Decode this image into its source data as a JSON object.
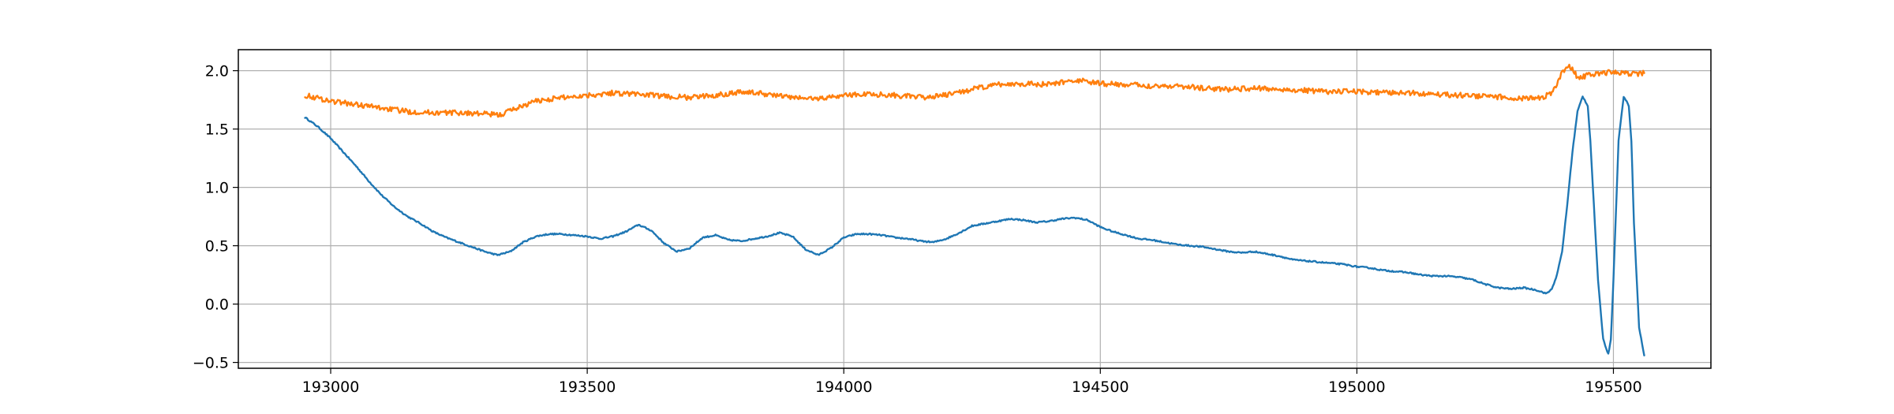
{
  "chart_data": {
    "type": "line",
    "title": "",
    "xlabel": "",
    "ylabel": "",
    "xlim": [
      192820,
      195690
    ],
    "ylim": [
      -0.55,
      2.18
    ],
    "grid": true,
    "xticks": [
      193000,
      193500,
      194000,
      194500,
      195000,
      195500
    ],
    "xtick_labels": [
      "193000",
      "193500",
      "194000",
      "194500",
      "195000",
      "195500"
    ],
    "yticks": [
      -0.5,
      0.0,
      0.5,
      1.0,
      1.5,
      2.0
    ],
    "ytick_labels": [
      "−0.5",
      "0.0",
      "0.5",
      "1.0",
      "1.5",
      "2.0"
    ],
    "series": [
      {
        "color": "#1f77b4",
        "x": [
          192950,
          192975,
          193000,
          193025,
          193050,
          193075,
          193100,
          193125,
          193150,
          193175,
          193200,
          193225,
          193250,
          193275,
          193300,
          193325,
          193350,
          193375,
          193400,
          193425,
          193450,
          193475,
          193500,
          193525,
          193550,
          193575,
          193600,
          193625,
          193650,
          193675,
          193700,
          193725,
          193750,
          193775,
          193800,
          193825,
          193850,
          193875,
          193900,
          193925,
          193950,
          193975,
          194000,
          194025,
          194050,
          194075,
          194100,
          194125,
          194150,
          194175,
          194200,
          194225,
          194250,
          194275,
          194300,
          194325,
          194350,
          194375,
          194400,
          194425,
          194450,
          194475,
          194500,
          194525,
          194550,
          194575,
          194600,
          194625,
          194650,
          194675,
          194700,
          194725,
          194750,
          194775,
          194800,
          194825,
          194850,
          194875,
          194900,
          194925,
          194950,
          194975,
          195000,
          195025,
          195050,
          195075,
          195100,
          195125,
          195150,
          195175,
          195200,
          195225,
          195250,
          195275,
          195300,
          195325,
          195350,
          195370,
          195380,
          195390,
          195400,
          195410,
          195420,
          195430,
          195440,
          195450,
          195455,
          195460,
          195470,
          195480,
          195490,
          195495,
          195500,
          195510,
          195520,
          195530,
          195535,
          195540,
          195550,
          195560
        ],
        "y": [
          1.6,
          1.52,
          1.42,
          1.3,
          1.18,
          1.05,
          0.93,
          0.83,
          0.75,
          0.69,
          0.62,
          0.57,
          0.53,
          0.49,
          0.45,
          0.42,
          0.45,
          0.53,
          0.58,
          0.6,
          0.6,
          0.59,
          0.58,
          0.56,
          0.58,
          0.62,
          0.68,
          0.63,
          0.52,
          0.45,
          0.48,
          0.57,
          0.59,
          0.55,
          0.54,
          0.56,
          0.58,
          0.61,
          0.58,
          0.47,
          0.42,
          0.48,
          0.57,
          0.6,
          0.6,
          0.59,
          0.57,
          0.56,
          0.54,
          0.53,
          0.56,
          0.61,
          0.67,
          0.69,
          0.71,
          0.73,
          0.72,
          0.7,
          0.71,
          0.73,
          0.74,
          0.72,
          0.66,
          0.62,
          0.59,
          0.56,
          0.55,
          0.53,
          0.51,
          0.5,
          0.49,
          0.47,
          0.45,
          0.44,
          0.45,
          0.43,
          0.41,
          0.38,
          0.37,
          0.36,
          0.35,
          0.34,
          0.32,
          0.31,
          0.29,
          0.28,
          0.27,
          0.25,
          0.24,
          0.24,
          0.23,
          0.21,
          0.17,
          0.14,
          0.13,
          0.14,
          0.12,
          0.09,
          0.13,
          0.25,
          0.45,
          0.85,
          1.3,
          1.65,
          1.78,
          1.7,
          1.4,
          1.0,
          0.2,
          -0.3,
          -0.43,
          -0.3,
          0.2,
          1.4,
          1.78,
          1.7,
          1.4,
          0.7,
          -0.2,
          -0.44
        ]
      },
      {
        "color": "#ff7f0e",
        "x": [
          192950,
          193000,
          193050,
          193100,
          193150,
          193200,
          193250,
          193300,
          193330,
          193350,
          193400,
          193450,
          193500,
          193550,
          193600,
          193650,
          193700,
          193750,
          193800,
          193850,
          193900,
          193950,
          194000,
          194050,
          194100,
          194150,
          194200,
          194250,
          194300,
          194350,
          194400,
          194450,
          194500,
          194550,
          194600,
          194650,
          194700,
          194750,
          194800,
          194850,
          194900,
          194950,
          195000,
          195050,
          195100,
          195150,
          195200,
          195250,
          195300,
          195350,
          195380,
          195400,
          195410,
          195420,
          195430,
          195440,
          195460,
          195500,
          195530,
          195560
        ],
        "y": [
          1.79,
          1.74,
          1.71,
          1.68,
          1.65,
          1.64,
          1.64,
          1.63,
          1.62,
          1.66,
          1.74,
          1.77,
          1.79,
          1.81,
          1.8,
          1.78,
          1.77,
          1.79,
          1.82,
          1.8,
          1.77,
          1.76,
          1.79,
          1.8,
          1.79,
          1.77,
          1.79,
          1.84,
          1.88,
          1.89,
          1.88,
          1.92,
          1.89,
          1.88,
          1.87,
          1.87,
          1.85,
          1.84,
          1.85,
          1.84,
          1.83,
          1.82,
          1.82,
          1.81,
          1.81,
          1.8,
          1.79,
          1.78,
          1.77,
          1.76,
          1.8,
          1.98,
          2.04,
          2.02,
          1.94,
          1.95,
          1.97,
          1.99,
          1.97,
          1.98
        ]
      }
    ]
  }
}
